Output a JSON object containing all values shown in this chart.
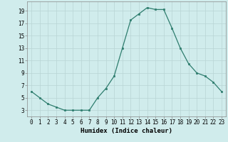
{
  "x": [
    0,
    1,
    2,
    3,
    4,
    5,
    6,
    7,
    8,
    9,
    10,
    11,
    12,
    13,
    14,
    15,
    16,
    17,
    18,
    19,
    20,
    21,
    22,
    23
  ],
  "y": [
    6,
    5,
    4,
    3.5,
    3,
    3,
    3,
    3,
    5,
    6.5,
    8.5,
    13,
    17.5,
    18.5,
    19.5,
    19.2,
    19.2,
    16.2,
    13,
    10.5,
    9,
    8.5,
    7.5,
    6
  ],
  "xlabel": "Humidex (Indice chaleur)",
  "xlim": [
    -0.5,
    23.5
  ],
  "ylim": [
    2,
    20.5
  ],
  "yticks": [
    3,
    5,
    7,
    9,
    11,
    13,
    15,
    17,
    19
  ],
  "xticks": [
    0,
    1,
    2,
    3,
    4,
    5,
    6,
    7,
    8,
    9,
    10,
    11,
    12,
    13,
    14,
    15,
    16,
    17,
    18,
    19,
    20,
    21,
    22,
    23
  ],
  "line_color": "#2e7d6e",
  "marker_color": "#2e7d6e",
  "bg_color": "#d0ecec",
  "grid_color": "#b8d4d4",
  "axis_color": "#888888",
  "tick_fontsize": 5.5,
  "xlabel_fontsize": 6.5,
  "linewidth": 0.9,
  "markersize": 2.0
}
